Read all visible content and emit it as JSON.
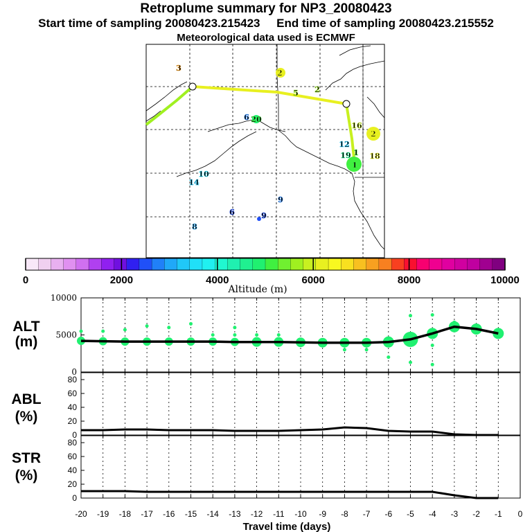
{
  "header": {
    "title": "Retroplume summary for NP3_20080423",
    "start_label": "Start time of sampling 20080423.215423",
    "end_label": "End time of sampling 20080423.215552",
    "met_label": "Meteorological data used is ECMWF"
  },
  "colorbar": {
    "title": "Altitude (m)",
    "tick_labels": [
      "0",
      "2000",
      "4000",
      "6000",
      "8000",
      "10000"
    ],
    "range": [
      0,
      10000
    ],
    "colors": [
      "#f8e8f8",
      "#f0d0f0",
      "#e8b0f0",
      "#e090f0",
      "#d070f0",
      "#b040f0",
      "#9020f0",
      "#7010e0",
      "#3020f0",
      "#2050f8",
      "#2080f8",
      "#20a8f8",
      "#20c8f8",
      "#20e0f8",
      "#20f0f0",
      "#20f8d0",
      "#20f0b0",
      "#20f090",
      "#20f070",
      "#40f040",
      "#70f030",
      "#a0f020",
      "#c8f020",
      "#e8f020",
      "#f8f820",
      "#f8e020",
      "#f8c020",
      "#f8a020",
      "#f88020",
      "#f84020",
      "#f81030",
      "#f80070",
      "#f00090",
      "#e000a0",
      "#d000a0",
      "#c000a0",
      "#a00090",
      "#800080"
    ]
  },
  "map": {
    "labels": [
      {
        "text": "3",
        "color": "#f8a020"
      },
      {
        "text": "2",
        "color": "#e8f020"
      },
      {
        "text": "5",
        "color": "#a0f020"
      },
      {
        "text": "2",
        "color": "#a0f020"
      },
      {
        "text": "16",
        "color": "#c8f020"
      },
      {
        "text": "2",
        "color": "#e8f020"
      },
      {
        "text": "6",
        "color": "#2080f8"
      },
      {
        "text": "20",
        "color": "#40f040"
      },
      {
        "text": "12",
        "color": "#20c8f8"
      },
      {
        "text": "19",
        "color": "#20f090"
      },
      {
        "text": "1",
        "color": "#40f040"
      },
      {
        "text": "18",
        "color": "#e8f020"
      },
      {
        "text": "1",
        "color": "#40f040"
      },
      {
        "text": "10",
        "color": "#20e0f8"
      },
      {
        "text": "14",
        "color": "#20c8f8"
      },
      {
        "text": "9",
        "color": "#2080f8"
      },
      {
        "text": "6",
        "color": "#2050f8"
      },
      {
        "text": "9",
        "color": "#2050f8"
      },
      {
        "text": "8",
        "color": "#20a8f8"
      }
    ]
  },
  "chart_data": [
    {
      "type": "line",
      "name": "ALT",
      "ylabel": "ALT\n(m)",
      "ylim": [
        0,
        10000
      ],
      "yticks": [
        0,
        5000,
        10000
      ],
      "xlim": [
        -20,
        0
      ],
      "x": [
        -20,
        -19,
        -18,
        -17,
        -16,
        -15,
        -14,
        -13,
        -12,
        -11,
        -10,
        -9,
        -8,
        -7,
        -6,
        -5,
        -4,
        -3,
        -2,
        -1
      ],
      "mean_line": [
        4200,
        4150,
        4100,
        4100,
        4100,
        4100,
        4100,
        4050,
        4050,
        4050,
        4000,
        3950,
        3950,
        3950,
        4050,
        4400,
        5200,
        6100,
        5800,
        5200
      ],
      "plume_color": "#20f070",
      "scatter": [
        {
          "x": -20,
          "y": 5500
        },
        {
          "x": -19,
          "y": 5500
        },
        {
          "x": -18,
          "y": 5700
        },
        {
          "x": -17,
          "y": 6200
        },
        {
          "x": -16,
          "y": 6000
        },
        {
          "x": -15,
          "y": 6500
        },
        {
          "x": -14,
          "y": 5000
        },
        {
          "x": -13,
          "y": 6000
        },
        {
          "x": -13,
          "y": 5000
        },
        {
          "x": -12,
          "y": 5000
        },
        {
          "x": -11,
          "y": 5000
        },
        {
          "x": -8,
          "y": 3000
        },
        {
          "x": -7,
          "y": 3000
        },
        {
          "x": -6,
          "y": 2000
        },
        {
          "x": -5,
          "y": 7600
        },
        {
          "x": -5,
          "y": 1300
        },
        {
          "x": -4,
          "y": 7700
        },
        {
          "x": -4,
          "y": 1000
        },
        {
          "x": -4,
          "y": 3600
        },
        {
          "x": -3,
          "y": 6700
        }
      ]
    },
    {
      "type": "line",
      "name": "ABL",
      "ylabel": "ABL\n(%)",
      "ylim": [
        0,
        90
      ],
      "yticks": [
        0,
        20,
        40,
        60,
        80
      ],
      "xlim": [
        -20,
        0
      ],
      "x": [
        -20,
        -19,
        -18,
        -17,
        -16,
        -15,
        -14,
        -13,
        -12,
        -11,
        -10,
        -9,
        -8,
        -7,
        -6,
        -5,
        -4,
        -3,
        -2,
        -1
      ],
      "values": [
        7,
        7,
        8,
        8,
        7,
        7,
        7,
        6,
        6,
        6,
        7,
        8,
        11,
        10,
        6,
        5,
        5,
        1,
        0,
        0
      ]
    },
    {
      "type": "line",
      "name": "STR",
      "ylabel": "STR\n(%)",
      "ylim": [
        0,
        90
      ],
      "yticks": [
        0,
        20,
        40,
        60,
        80
      ],
      "xlim": [
        -20,
        0
      ],
      "xlabel": "Travel time (days)",
      "xticks": [
        -20,
        -19,
        -18,
        -17,
        -16,
        -15,
        -14,
        -13,
        -12,
        -11,
        -10,
        -9,
        -8,
        -7,
        -6,
        -5,
        -4,
        -3,
        -2,
        -1,
        0
      ],
      "x": [
        -20,
        -19,
        -18,
        -17,
        -16,
        -15,
        -14,
        -13,
        -12,
        -11,
        -10,
        -9,
        -8,
        -7,
        -6,
        -5,
        -4,
        -3,
        -2,
        -1
      ],
      "values": [
        10,
        10,
        10,
        9,
        9,
        9,
        9,
        9,
        9,
        9,
        9,
        9,
        9,
        9,
        9,
        9,
        9,
        4,
        0,
        0
      ]
    }
  ]
}
